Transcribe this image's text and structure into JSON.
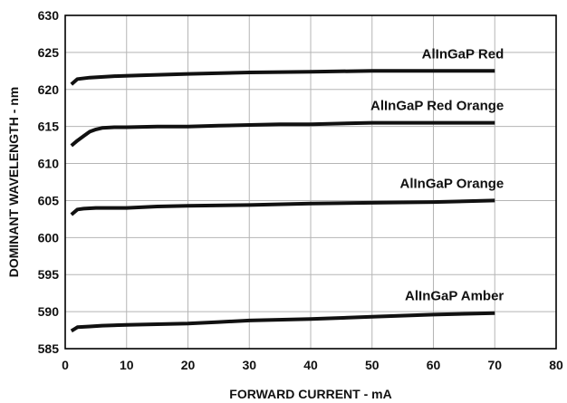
{
  "chart_data": {
    "type": "line",
    "title": "",
    "xlabel": "FORWARD CURRENT - mA",
    "ylabel": "DOMINANT WAVELENGTH - nm",
    "xlim": [
      0,
      80
    ],
    "ylim": [
      585,
      630
    ],
    "x_ticks": [
      "0",
      "10",
      "20",
      "30",
      "40",
      "50",
      "60",
      "70",
      "80"
    ],
    "y_ticks": [
      "585",
      "590",
      "595",
      "600",
      "605",
      "610",
      "615",
      "620",
      "625",
      "630"
    ],
    "grid": true,
    "legend": "none",
    "series": [
      {
        "name": "AlInGaP Red",
        "x": [
          1,
          2,
          4,
          8,
          12,
          20,
          30,
          40,
          50,
          60,
          70
        ],
        "y": [
          620.7,
          621.4,
          621.6,
          621.8,
          621.9,
          622.1,
          622.3,
          622.4,
          622.5,
          622.5,
          622.5
        ]
      },
      {
        "name": "AlInGaP Red Orange",
        "x": [
          1,
          2,
          3,
          4,
          5,
          6,
          8,
          10,
          15,
          20,
          25,
          30,
          35,
          40,
          45,
          50,
          60,
          70
        ],
        "y": [
          612.4,
          613.1,
          613.7,
          614.3,
          614.6,
          614.8,
          614.9,
          614.9,
          615.0,
          615.0,
          615.1,
          615.2,
          615.3,
          615.3,
          615.4,
          615.5,
          615.5,
          615.5
        ]
      },
      {
        "name": "AlInGaP Orange",
        "x": [
          1,
          2,
          3,
          5,
          10,
          15,
          20,
          30,
          40,
          50,
          60,
          70
        ],
        "y": [
          603.1,
          603.8,
          603.9,
          604.0,
          604.0,
          604.2,
          604.3,
          604.4,
          604.6,
          604.7,
          604.8,
          605.0
        ]
      },
      {
        "name": "AlInGaP Amber",
        "x": [
          1,
          2,
          4,
          6,
          10,
          15,
          20,
          25,
          30,
          40,
          50,
          60,
          70
        ],
        "y": [
          587.4,
          587.9,
          588.0,
          588.1,
          588.2,
          588.3,
          588.4,
          588.6,
          588.8,
          589.0,
          589.3,
          589.6,
          589.8
        ]
      }
    ]
  }
}
